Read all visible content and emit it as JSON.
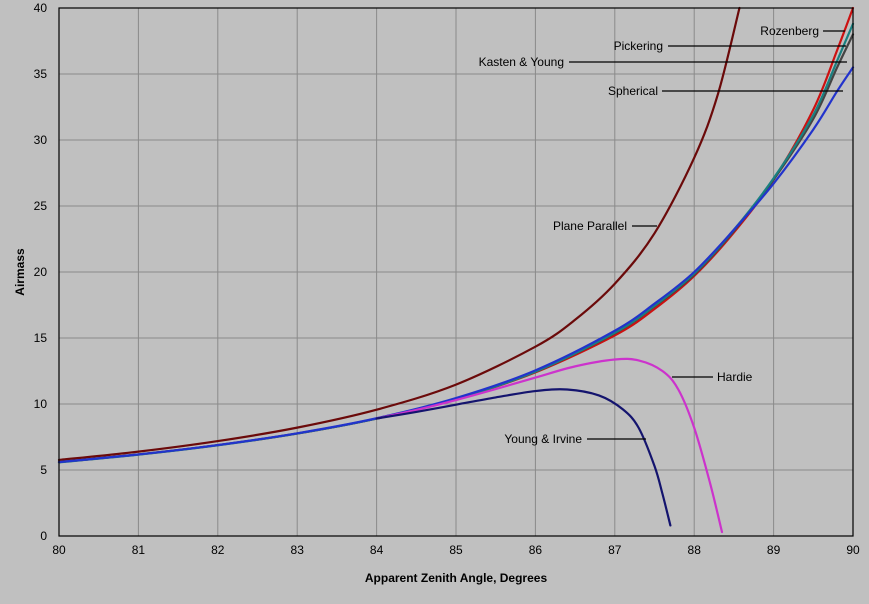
{
  "chart_data": {
    "type": "line",
    "title": "",
    "xlabel": "Apparent Zenith Angle, Degrees",
    "ylabel": "Airmass",
    "xlim": [
      80,
      90
    ],
    "ylim": [
      0,
      40
    ],
    "xticks": [
      "80",
      "81",
      "82",
      "83",
      "84",
      "85",
      "86",
      "87",
      "88",
      "89",
      "90"
    ],
    "yticks": [
      "0",
      "5",
      "10",
      "15",
      "20",
      "25",
      "30",
      "35",
      "40"
    ],
    "grid": true,
    "background_color": "#c0c0c0",
    "series": [
      {
        "name": "Plane Parallel",
        "color": "#6b0a0a",
        "x": [
          80,
          81,
          82,
          83,
          84,
          85,
          86,
          86.5,
          87,
          87.5,
          88,
          88.3,
          88.57
        ],
        "y": [
          5.76,
          6.39,
          7.19,
          8.21,
          9.57,
          11.47,
          14.34,
          16.38,
          19.11,
          22.93,
          28.65,
          33.5,
          40.0
        ]
      },
      {
        "name": "Rozenberg",
        "color": "#cc1111",
        "x": [
          80,
          81,
          82,
          83,
          84,
          85,
          86,
          87,
          87.5,
          88,
          88.5,
          89,
          89.5,
          89.8,
          90
        ],
        "y": [
          5.6,
          6.17,
          6.88,
          7.76,
          8.9,
          10.38,
          12.4,
          15.2,
          17.2,
          19.7,
          23.0,
          27.0,
          32.3,
          36.8,
          40.0
        ]
      },
      {
        "name": "Kasten & Young",
        "color": "#444444",
        "x": [
          80,
          81,
          82,
          83,
          84,
          85,
          86,
          87,
          87.5,
          88,
          88.5,
          89,
          89.5,
          89.8,
          90
        ],
        "y": [
          5.6,
          6.18,
          6.89,
          7.77,
          8.9,
          10.4,
          12.44,
          15.36,
          17.4,
          19.8,
          23.1,
          27.0,
          31.6,
          35.5,
          38.0
        ]
      },
      {
        "name": "Pickering",
        "color": "#1a8080",
        "x": [
          80,
          81,
          82,
          83,
          84,
          85,
          86,
          87,
          87.5,
          88,
          88.5,
          89,
          89.5,
          89.8,
          90
        ],
        "y": [
          5.58,
          6.16,
          6.87,
          7.76,
          8.9,
          10.39,
          12.45,
          15.4,
          17.45,
          19.9,
          23.2,
          27.1,
          31.9,
          36.0,
          38.8
        ]
      },
      {
        "name": "Spherical",
        "color": "#2233cc",
        "x": [
          80,
          81,
          82,
          83,
          84,
          85,
          86,
          87,
          87.5,
          88,
          88.5,
          89,
          89.5,
          89.8,
          90
        ],
        "y": [
          5.6,
          6.18,
          6.89,
          7.78,
          8.92,
          10.45,
          12.55,
          15.55,
          17.6,
          20.0,
          23.2,
          26.7,
          30.8,
          33.7,
          35.5
        ]
      },
      {
        "name": "Hardie",
        "color": "#cc33cc",
        "x": [
          84,
          84.5,
          85,
          85.5,
          86,
          86.5,
          87,
          87.3,
          87.6,
          87.8,
          88,
          88.2,
          88.35
        ],
        "y": [
          8.9,
          9.55,
          10.3,
          11.13,
          12.0,
          12.85,
          13.37,
          13.3,
          12.5,
          11.1,
          8.2,
          4.0,
          0.3
        ]
      },
      {
        "name": "Young & Irvine",
        "color": "#14146e",
        "x": [
          84,
          84.5,
          85,
          85.5,
          86,
          86.4,
          86.8,
          87.1,
          87.3,
          87.5,
          87.6,
          87.7
        ],
        "y": [
          8.9,
          9.4,
          9.95,
          10.5,
          10.98,
          11.1,
          10.65,
          9.6,
          8.2,
          5.3,
          3.2,
          0.8
        ]
      }
    ],
    "annotations": [
      {
        "text": "Rozenberg"
      },
      {
        "text": "Pickering"
      },
      {
        "text": "Kasten & Young"
      },
      {
        "text": "Spherical"
      },
      {
        "text": "Plane Parallel"
      },
      {
        "text": "Hardie"
      },
      {
        "text": "Young & Irvine"
      }
    ]
  }
}
